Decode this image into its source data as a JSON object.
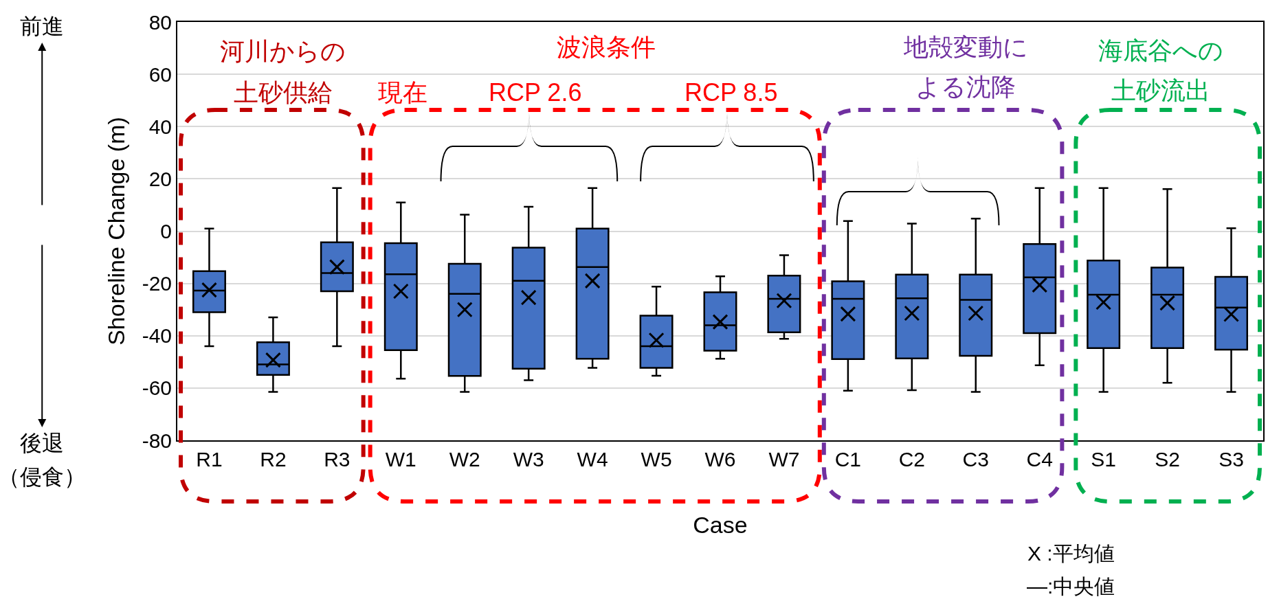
{
  "chart_data": {
    "type": "box",
    "xlabel": "Case",
    "ylabel": "Shoreline Change (m)",
    "categories": [
      "R1",
      "R2",
      "R3",
      "W1",
      "W2",
      "W3",
      "W4",
      "W5",
      "W6",
      "W7",
      "C1",
      "C2",
      "C3",
      "C4",
      "S1",
      "S2",
      "S3"
    ],
    "color": "#4472c4",
    "boxes": [
      {
        "low": -44,
        "q1": -31,
        "median": -22.7,
        "q3": -15.3,
        "high": 1,
        "mean": -22.5
      },
      {
        "low": -61.5,
        "q1": -55,
        "median": -51,
        "q3": -42.5,
        "high": -33,
        "mean": -49.3
      },
      {
        "low": -44,
        "q1": -23,
        "median": -16,
        "q3": -4.3,
        "high": 16.5,
        "mean": -13.7
      },
      {
        "low": -56.4,
        "q1": -45.5,
        "median": -16.5,
        "q3": -4.6,
        "high": 11,
        "mean": -23
      },
      {
        "low": -61.5,
        "q1": -55.4,
        "median": -24,
        "q3": -12.5,
        "high": 6.3,
        "mean": -30
      },
      {
        "low": -57,
        "q1": -52.6,
        "median": -19,
        "q3": -6.3,
        "high": 9.3,
        "mean": -25.4
      },
      {
        "low": -52.3,
        "q1": -48.8,
        "median": -13.7,
        "q3": 1,
        "high": 16.5,
        "mean": -19
      },
      {
        "low": -55.3,
        "q1": -52.3,
        "median": -44,
        "q3": -32.3,
        "high": -21.2,
        "mean": -41.7
      },
      {
        "low": -48.8,
        "q1": -45.7,
        "median": -36,
        "q3": -23.4,
        "high": -17.3,
        "mean": -34.7
      },
      {
        "low": -41.2,
        "q1": -38.7,
        "median": -25.9,
        "q3": -17,
        "high": -9.2,
        "mean": -26.6
      },
      {
        "low": -61,
        "q1": -48.9,
        "median": -25.9,
        "q3": -19.2,
        "high": 3.9,
        "mean": -31.7
      },
      {
        "low": -60.8,
        "q1": -48.7,
        "median": -25.7,
        "q3": -16.6,
        "high": 2.9,
        "mean": -31.4
      },
      {
        "low": -61.5,
        "q1": -47.7,
        "median": -26.3,
        "q3": -16.6,
        "high": 4.8,
        "mean": -31.4
      },
      {
        "low": -51.3,
        "q1": -39,
        "median": -17.7,
        "q3": -4.9,
        "high": 16.5,
        "mean": -20.6
      },
      {
        "low": -61.5,
        "q1": -44.7,
        "median": -24.3,
        "q3": -11.2,
        "high": 16.5,
        "mean": -27.2
      },
      {
        "low": -58,
        "q1": -44.7,
        "median": -24.3,
        "q3": -13.9,
        "high": 16.1,
        "mean": -27.5
      },
      {
        "low": -61.5,
        "q1": -45.3,
        "median": -29.2,
        "q3": -17.5,
        "high": 1.1,
        "mean": -31.8
      }
    ],
    "ylim": [
      -80,
      80
    ],
    "yticks": [
      -80,
      -60,
      -40,
      -20,
      0,
      20,
      40,
      60,
      80
    ],
    "grid": "y",
    "marker": "cross",
    "annotations": [
      "河川からの",
      "土砂供給",
      "波浪条件",
      "現在",
      "RCP 2.6",
      "RCP 8.5",
      "地殻変動に",
      "よる沈降",
      "海底谷への",
      "土砂流出",
      "前進",
      "後退",
      "（侵食）",
      "X :平均値",
      "—:中央値"
    ]
  }
}
